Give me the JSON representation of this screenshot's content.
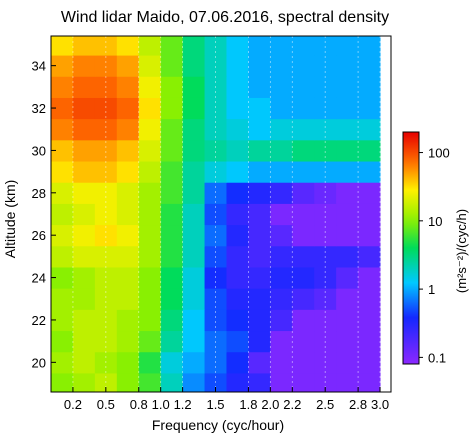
{
  "chart_data": {
    "type": "heatmap",
    "title": "Wind lidar Maido, 07.06.2016, spectral density",
    "xlabel": "Frequency (cyc/hour)",
    "ylabel": "Altitude (km)",
    "xlim": [
      0,
      3.1
    ],
    "ylim": [
      18.6,
      35.4
    ],
    "x_ticks": [
      0.2,
      0.5,
      0.8,
      1.0,
      1.2,
      1.5,
      1.8,
      2.0,
      2.2,
      2.5,
      2.8,
      3.0
    ],
    "x_tick_labels": [
      "0.2",
      "0.5",
      "0.8",
      "1.0",
      "1.2",
      "1.5",
      "1.8",
      "2.0",
      "2.2",
      "2.5",
      "2.8",
      "3.0"
    ],
    "y_ticks": [
      20,
      22,
      24,
      26,
      28,
      30,
      32,
      34
    ],
    "y_tick_labels": [
      "20",
      "22",
      "24",
      "26",
      "28",
      "30",
      "32",
      "34"
    ],
    "grid": "vertical dotted",
    "x_centers": [
      0.1,
      0.3,
      0.5,
      0.7,
      0.9,
      1.1,
      1.3,
      1.5,
      1.7,
      1.9,
      2.1,
      2.3,
      2.5,
      2.7,
      2.9
    ],
    "y_centers": [
      19,
      20,
      21,
      22,
      23,
      24,
      25,
      26,
      27,
      28,
      29,
      30,
      31,
      32,
      33,
      34,
      35
    ],
    "z_unit": "log10 spectral density",
    "z": [
      [
        1.0,
        1.1,
        1.2,
        1.0,
        0.8,
        0.3,
        -0.1,
        -0.3,
        -0.5,
        -0.6,
        -1.0,
        -1.0,
        -1.0,
        -1.0,
        -1.0
      ],
      [
        1.1,
        1.2,
        1.1,
        1.0,
        0.7,
        0.2,
        0.0,
        -0.2,
        -0.4,
        -0.8,
        -1.0,
        -1.0,
        -1.0,
        -1.0,
        -1.0
      ],
      [
        1.0,
        1.2,
        1.2,
        1.1,
        0.9,
        0.4,
        0.1,
        -0.2,
        -0.3,
        -0.5,
        -1.0,
        -1.0,
        -1.0,
        -1.0,
        -1.0
      ],
      [
        1.1,
        1.2,
        1.2,
        1.1,
        1.0,
        0.5,
        0.1,
        -0.3,
        -0.4,
        -0.5,
        -0.7,
        -1.0,
        -1.0,
        -1.0,
        -1.0
      ],
      [
        1.1,
        1.1,
        1.2,
        1.2,
        1.0,
        0.6,
        0.2,
        -0.3,
        -0.5,
        -0.5,
        -0.6,
        -0.7,
        -0.8,
        -1.0,
        -1.0
      ],
      [
        1.0,
        1.1,
        1.2,
        1.2,
        1.0,
        0.6,
        0.2,
        -0.4,
        -0.6,
        -0.6,
        -0.5,
        -0.5,
        -0.6,
        -0.8,
        -1.0
      ],
      [
        1.2,
        1.3,
        1.3,
        1.3,
        1.1,
        0.7,
        0.3,
        -0.3,
        -0.6,
        -0.7,
        -0.6,
        -0.6,
        -0.6,
        -0.6,
        -0.7
      ],
      [
        1.3,
        1.4,
        1.5,
        1.4,
        1.1,
        0.7,
        0.3,
        -0.2,
        -0.5,
        -0.7,
        -0.8,
        -1.0,
        -1.0,
        -1.0,
        -1.0
      ],
      [
        1.2,
        1.3,
        1.4,
        1.3,
        1.1,
        0.7,
        0.3,
        -0.3,
        -0.6,
        -0.7,
        -1.0,
        -1.0,
        -1.0,
        -1.0,
        -1.0
      ],
      [
        1.3,
        1.4,
        1.4,
        1.3,
        1.1,
        0.8,
        0.4,
        -0.2,
        -0.4,
        -0.5,
        -0.6,
        -0.8,
        -0.9,
        -1.0,
        -1.0
      ],
      [
        1.5,
        1.6,
        1.6,
        1.5,
        1.2,
        0.8,
        0.4,
        0.2,
        0.1,
        0.0,
        0.0,
        0.0,
        0.0,
        0.0,
        0.0
      ],
      [
        1.6,
        1.7,
        1.7,
        1.6,
        1.3,
        0.9,
        0.5,
        0.4,
        0.3,
        0.4,
        0.4,
        0.5,
        0.5,
        0.5,
        0.5
      ],
      [
        1.8,
        1.9,
        1.9,
        1.8,
        1.4,
        0.9,
        0.5,
        0.3,
        0.2,
        0.1,
        0.2,
        0.2,
        0.2,
        0.2,
        0.2
      ],
      [
        1.9,
        2.0,
        2.0,
        1.9,
        1.5,
        1.0,
        0.6,
        0.3,
        0.1,
        0.1,
        0.0,
        0.0,
        0.0,
        0.0,
        0.0
      ],
      [
        1.8,
        1.9,
        1.9,
        1.8,
        1.4,
        1.0,
        0.6,
        0.3,
        0.1,
        0.0,
        0.0,
        0.0,
        0.0,
        0.0,
        0.0
      ],
      [
        1.7,
        1.8,
        1.8,
        1.7,
        1.3,
        0.9,
        0.5,
        0.3,
        0.1,
        0.0,
        0.0,
        0.0,
        0.0,
        0.0,
        0.0
      ],
      [
        1.5,
        1.6,
        1.6,
        1.5,
        1.2,
        0.9,
        0.5,
        0.3,
        0.1,
        0.0,
        0.0,
        0.0,
        0.0,
        0.0,
        0.0
      ]
    ],
    "colorbar": {
      "scale": "log",
      "range": [
        0.08,
        200
      ],
      "ticks": [
        0.1,
        1,
        10,
        100
      ],
      "tick_labels": [
        "0.1",
        "1",
        "10",
        "100"
      ],
      "label": "(m²s⁻²)/(cyc/h)"
    }
  }
}
